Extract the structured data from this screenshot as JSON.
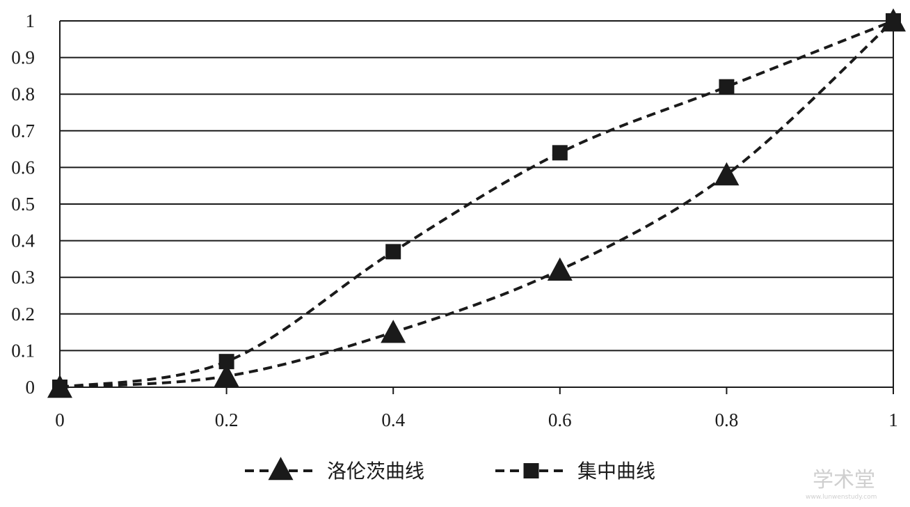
{
  "chart_data": {
    "type": "line",
    "x": [
      0,
      0.2,
      0.4,
      0.6,
      0.8,
      1
    ],
    "x_tick_labels": [
      "0",
      "0.2",
      "0.4",
      "0.6",
      "0.8",
      "1"
    ],
    "y_tick_labels": [
      "0",
      "0.1",
      "0.2",
      "0.3",
      "0.4",
      "0.5",
      "0.6",
      "0.7",
      "0.8",
      "0.9",
      "1"
    ],
    "xlim": [
      0,
      1
    ],
    "ylim": [
      0,
      1
    ],
    "grid": "horizontal",
    "legend_position": "bottom",
    "series": [
      {
        "name": "洛伦茨曲线",
        "marker": "triangle",
        "values": [
          0,
          0.03,
          0.15,
          0.32,
          0.58,
          1.0
        ]
      },
      {
        "name": "集中曲线",
        "marker": "square",
        "values": [
          0,
          0.07,
          0.37,
          0.64,
          0.82,
          1.0
        ]
      }
    ],
    "colors": {
      "line": "#1a1a1a",
      "grid": "#1a1a1a",
      "background": "#ffffff"
    }
  },
  "watermark": {
    "text": "学术堂",
    "url": "www.lunwenstudy.com"
  }
}
